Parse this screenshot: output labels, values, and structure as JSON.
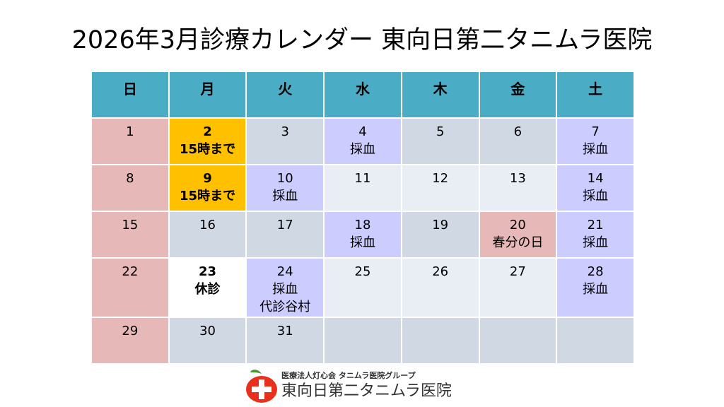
{
  "title": "2026年3月診療カレンダー 東向日第二タニムラ医院",
  "weekdays": [
    "日",
    "月",
    "火",
    "水",
    "木",
    "金",
    "土"
  ],
  "weeks": [
    [
      {
        "day": "1",
        "notes": [],
        "type": "sun"
      },
      {
        "day": "2",
        "notes": [
          "15時まで"
        ],
        "type": "short"
      },
      {
        "day": "3",
        "notes": [],
        "type": "gray"
      },
      {
        "day": "4",
        "notes": [
          "採血"
        ],
        "type": "blood"
      },
      {
        "day": "5",
        "notes": [],
        "type": "gray"
      },
      {
        "day": "6",
        "notes": [],
        "type": "gray"
      },
      {
        "day": "7",
        "notes": [
          "採血"
        ],
        "type": "blood"
      }
    ],
    [
      {
        "day": "8",
        "notes": [],
        "type": "sun"
      },
      {
        "day": "9",
        "notes": [
          "15時まで"
        ],
        "type": "short"
      },
      {
        "day": "10",
        "notes": [
          "採血"
        ],
        "type": "blood"
      },
      {
        "day": "11",
        "notes": [],
        "type": "light"
      },
      {
        "day": "12",
        "notes": [],
        "type": "light"
      },
      {
        "day": "13",
        "notes": [],
        "type": "light"
      },
      {
        "day": "14",
        "notes": [
          "採血"
        ],
        "type": "blood"
      }
    ],
    [
      {
        "day": "15",
        "notes": [],
        "type": "sun"
      },
      {
        "day": "16",
        "notes": [],
        "type": "gray"
      },
      {
        "day": "17",
        "notes": [],
        "type": "gray"
      },
      {
        "day": "18",
        "notes": [
          "採血"
        ],
        "type": "blood"
      },
      {
        "day": "19",
        "notes": [],
        "type": "gray"
      },
      {
        "day": "20",
        "notes": [
          "春分の日"
        ],
        "type": "hol"
      },
      {
        "day": "21",
        "notes": [
          "採血"
        ],
        "type": "blood"
      }
    ],
    [
      {
        "day": "22",
        "notes": [],
        "type": "sun"
      },
      {
        "day": "23",
        "notes": [
          "休診"
        ],
        "type": "bold"
      },
      {
        "day": "24",
        "notes": [
          "採血",
          "代診谷村"
        ],
        "type": "blood"
      },
      {
        "day": "25",
        "notes": [],
        "type": "light"
      },
      {
        "day": "26",
        "notes": [],
        "type": "light"
      },
      {
        "day": "27",
        "notes": [],
        "type": "light"
      },
      {
        "day": "28",
        "notes": [
          "採血"
        ],
        "type": "blood"
      }
    ],
    [
      {
        "day": "29",
        "notes": [],
        "type": "sun"
      },
      {
        "day": "30",
        "notes": [],
        "type": "gray"
      },
      {
        "day": "31",
        "notes": [],
        "type": "gray"
      },
      {
        "day": "",
        "notes": [],
        "type": "gray"
      },
      {
        "day": "",
        "notes": [],
        "type": "gray"
      },
      {
        "day": "",
        "notes": [],
        "type": "gray"
      },
      {
        "day": "",
        "notes": [],
        "type": "gray"
      }
    ]
  ],
  "logo": {
    "org": "医療法人灯心会 タニムラ医院グループ",
    "name": "東向日第二タニムラ医院",
    "accent_red": "#e8301c",
    "leaf_green": "#4a9a2f"
  }
}
